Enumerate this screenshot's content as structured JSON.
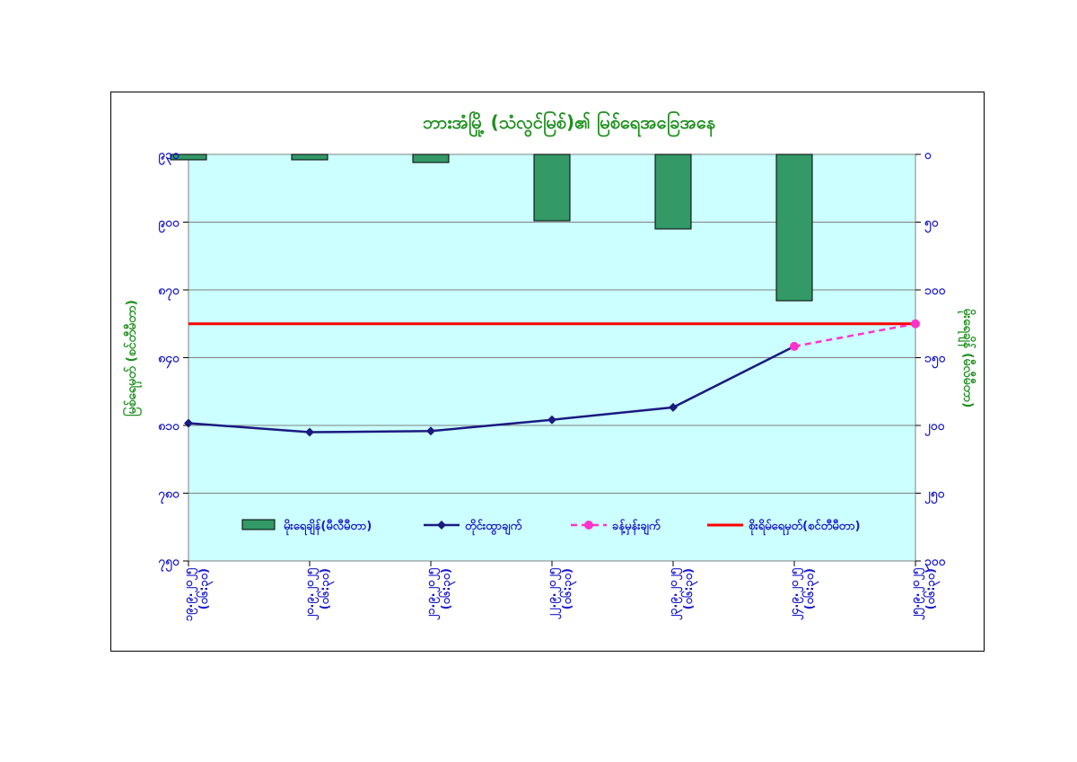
{
  "chart_data": {
    "type": "bar+line",
    "title": "ဘားအံမြို့ (သံလွင်မြစ်)၏ မြစ်ရေအခြေအနေ",
    "ylabel_left": "မြစ်ရေမှတ် (စင်တီမီတာ)",
    "ylabel_right": "မိုးရေချိန် (မီလီမီတာ)",
    "left_axis": {
      "ticks": [
        {
          "value": 930,
          "label": "၉၃၀"
        },
        {
          "value": 900,
          "label": "၉၀၀"
        },
        {
          "value": 870,
          "label": "၈၇၀"
        },
        {
          "value": 840,
          "label": "၈၄၀"
        },
        {
          "value": 810,
          "label": "၈၁၀"
        },
        {
          "value": 780,
          "label": "၇၈၀"
        },
        {
          "value": 750,
          "label": "၇၅၀"
        }
      ],
      "ylim": [
        750,
        930
      ]
    },
    "right_axis": {
      "ticks": [
        {
          "value": 0,
          "label": "၀"
        },
        {
          "value": 50,
          "label": "၅၀"
        },
        {
          "value": 100,
          "label": "၁၀၀"
        },
        {
          "value": 150,
          "label": "၁၅၀"
        },
        {
          "value": 200,
          "label": "၂၀၀"
        },
        {
          "value": 250,
          "label": "၂၅၀"
        },
        {
          "value": 300,
          "label": "၃၀၀"
        }
      ],
      "ylim": [
        0,
        300
      ],
      "inverted": true
    },
    "categories": [
      [
        "၁၉.၉.၂၀၂၅",
        "(၀၆:၃၀)"
      ],
      [
        "၂၀.၉.၂၀၂၅",
        "(၀၆:၃၀)"
      ],
      [
        "၂၁.၉.၂၀၂၅",
        "(၀၆:၃၀)"
      ],
      [
        "၂၂.၉.၂၀၂၅",
        "(၀၆:၃၀)"
      ],
      [
        "၂၃.၉.၂၀၂၅",
        "(၀၆:၃၀)"
      ],
      [
        "၂၄.၉.၂၀၂၅",
        "(၀၆:၃၀)"
      ],
      [
        "၂၅.၉.၂၀၂၅",
        "(၀၆:၃၀)"
      ]
    ],
    "series": [
      {
        "name": "မိုးရေချိန်(မီလီမီတာ)",
        "kind": "bar",
        "axis": "right",
        "color": "#339966",
        "values": [
          4,
          4,
          6,
          49,
          55,
          108,
          null
        ]
      },
      {
        "name": "တိုင်းထွာချက်",
        "kind": "line",
        "axis": "left",
        "color": "#1a1a80",
        "values": [
          811,
          807,
          807.5,
          812.5,
          818,
          845,
          null
        ]
      },
      {
        "name": "ခန့်မှန်းချက်",
        "kind": "line-dashed",
        "axis": "left",
        "color": "#ff33cc",
        "values": [
          null,
          null,
          null,
          null,
          null,
          845,
          855
        ]
      },
      {
        "name": "စိုးရိမ်ရေမှတ်(စင်တီမီတာ)",
        "kind": "hline",
        "axis": "left",
        "color": "#ff0000",
        "value": 855
      }
    ],
    "legend_position": "bottom-inside",
    "plot_background": "#ccffff",
    "grid": true
  }
}
